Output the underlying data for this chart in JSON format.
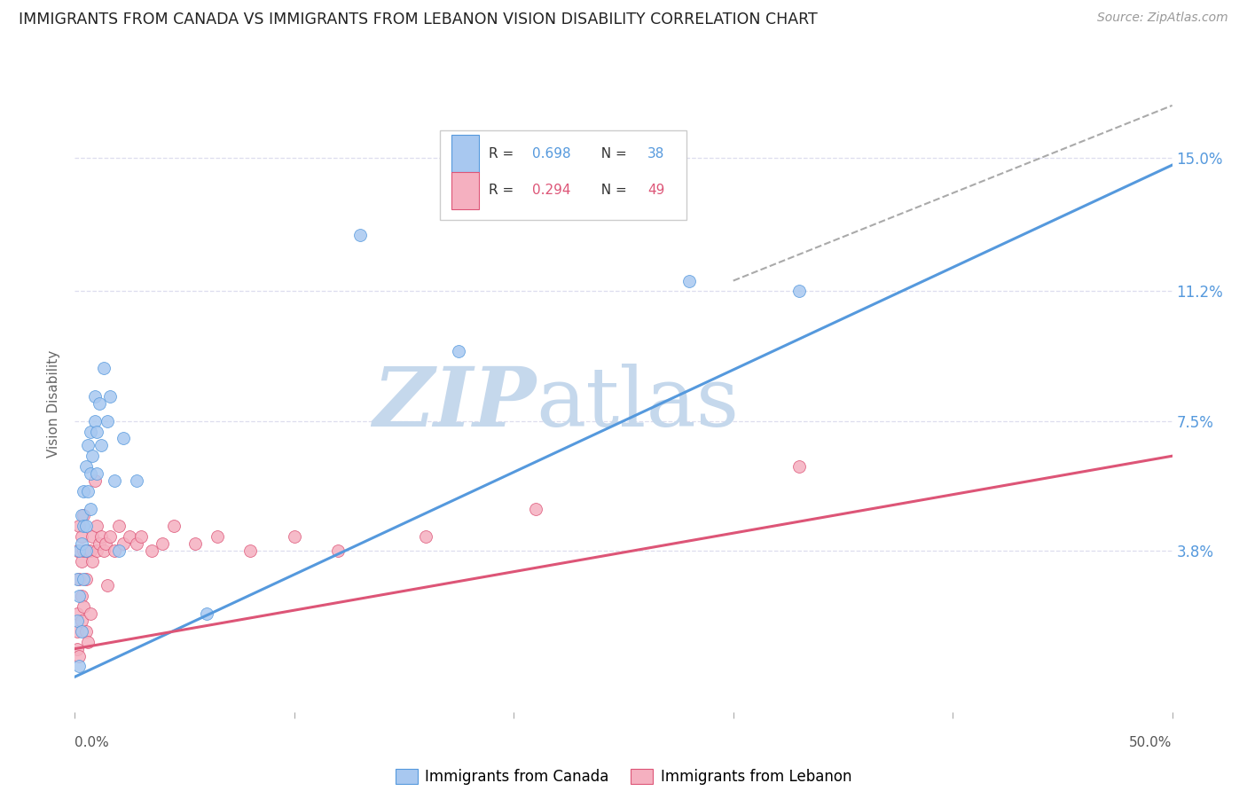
{
  "title": "IMMIGRANTS FROM CANADA VS IMMIGRANTS FROM LEBANON VISION DISABILITY CORRELATION CHART",
  "source": "Source: ZipAtlas.com",
  "ylabel": "Vision Disability",
  "yticks_labels": [
    "15.0%",
    "11.2%",
    "7.5%",
    "3.8%"
  ],
  "ytick_vals": [
    0.15,
    0.112,
    0.075,
    0.038
  ],
  "xlim": [
    0.0,
    0.5
  ],
  "ylim": [
    -0.008,
    0.168
  ],
  "canada_R": "0.698",
  "canada_N": "38",
  "lebanon_R": "0.294",
  "lebanon_N": "49",
  "canada_color": "#a8c8f0",
  "lebanon_color": "#f5b0c0",
  "trendline_canada_color": "#5599dd",
  "trendline_lebanon_color": "#dd5577",
  "watermark_zip_color": "#c5d8ec",
  "watermark_atlas_color": "#c5d8ec",
  "background_color": "#ffffff",
  "grid_color": "#ddddee",
  "canada_points_x": [
    0.001,
    0.001,
    0.002,
    0.002,
    0.002,
    0.003,
    0.003,
    0.003,
    0.004,
    0.004,
    0.004,
    0.005,
    0.005,
    0.005,
    0.006,
    0.006,
    0.007,
    0.007,
    0.007,
    0.008,
    0.009,
    0.009,
    0.01,
    0.01,
    0.011,
    0.012,
    0.013,
    0.015,
    0.016,
    0.018,
    0.02,
    0.022,
    0.028,
    0.06,
    0.13,
    0.175,
    0.28,
    0.33
  ],
  "canada_points_y": [
    0.018,
    0.03,
    0.005,
    0.038,
    0.025,
    0.015,
    0.04,
    0.048,
    0.03,
    0.045,
    0.055,
    0.038,
    0.045,
    0.062,
    0.055,
    0.068,
    0.05,
    0.06,
    0.072,
    0.065,
    0.075,
    0.082,
    0.06,
    0.072,
    0.08,
    0.068,
    0.09,
    0.075,
    0.082,
    0.058,
    0.038,
    0.07,
    0.058,
    0.02,
    0.128,
    0.095,
    0.115,
    0.112
  ],
  "lebanon_points_x": [
    0.001,
    0.001,
    0.001,
    0.001,
    0.002,
    0.002,
    0.002,
    0.003,
    0.003,
    0.003,
    0.003,
    0.004,
    0.004,
    0.004,
    0.005,
    0.005,
    0.005,
    0.006,
    0.006,
    0.007,
    0.007,
    0.008,
    0.008,
    0.009,
    0.01,
    0.01,
    0.011,
    0.012,
    0.013,
    0.014,
    0.015,
    0.016,
    0.018,
    0.02,
    0.022,
    0.025,
    0.028,
    0.03,
    0.035,
    0.04,
    0.045,
    0.055,
    0.065,
    0.08,
    0.1,
    0.12,
    0.16,
    0.21,
    0.33
  ],
  "lebanon_points_y": [
    0.02,
    0.015,
    0.01,
    0.038,
    0.045,
    0.03,
    0.008,
    0.035,
    0.025,
    0.042,
    0.018,
    0.022,
    0.038,
    0.048,
    0.03,
    0.038,
    0.015,
    0.038,
    0.012,
    0.038,
    0.02,
    0.042,
    0.035,
    0.058,
    0.038,
    0.045,
    0.04,
    0.042,
    0.038,
    0.04,
    0.028,
    0.042,
    0.038,
    0.045,
    0.04,
    0.042,
    0.04,
    0.042,
    0.038,
    0.04,
    0.045,
    0.04,
    0.042,
    0.038,
    0.042,
    0.038,
    0.042,
    0.05,
    0.062
  ],
  "canada_trend": [
    0.0,
    0.5,
    0.002,
    0.148
  ],
  "lebanon_trend": [
    0.0,
    0.5,
    0.01,
    0.065
  ],
  "dash_line": [
    0.3,
    0.5,
    0.115,
    0.165
  ]
}
